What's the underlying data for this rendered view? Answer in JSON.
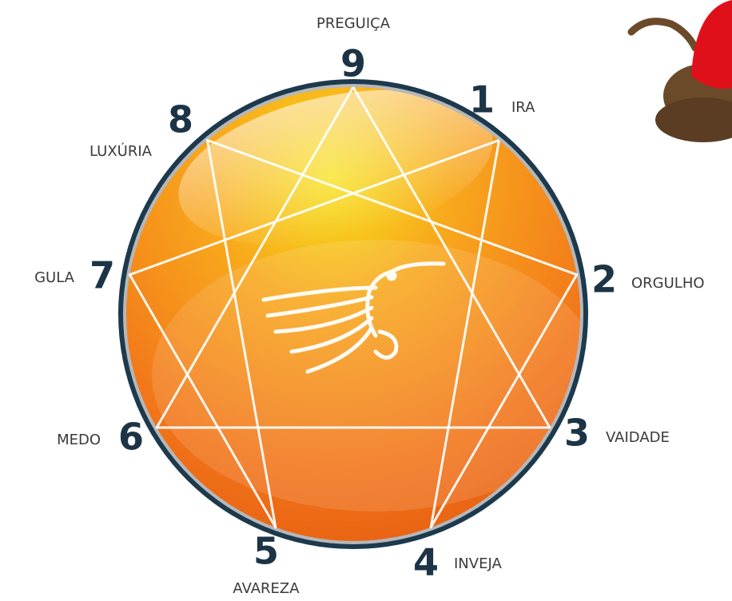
{
  "nodes": [
    {
      "number": "9",
      "label": "PREGUIÇA"
    },
    {
      "number": "1",
      "label": "IRA"
    },
    {
      "number": "2",
      "label": "ORGULHO"
    },
    {
      "number": "3",
      "label": "VAIDADE"
    },
    {
      "number": "4",
      "label": "INVEJA"
    },
    {
      "number": "5",
      "label": "AVAREZA"
    },
    {
      "number": "6",
      "label": "MEDO"
    },
    {
      "number": "7",
      "label": "GULA"
    },
    {
      "number": "8",
      "label": "LUXÚRIA"
    }
  ]
}
